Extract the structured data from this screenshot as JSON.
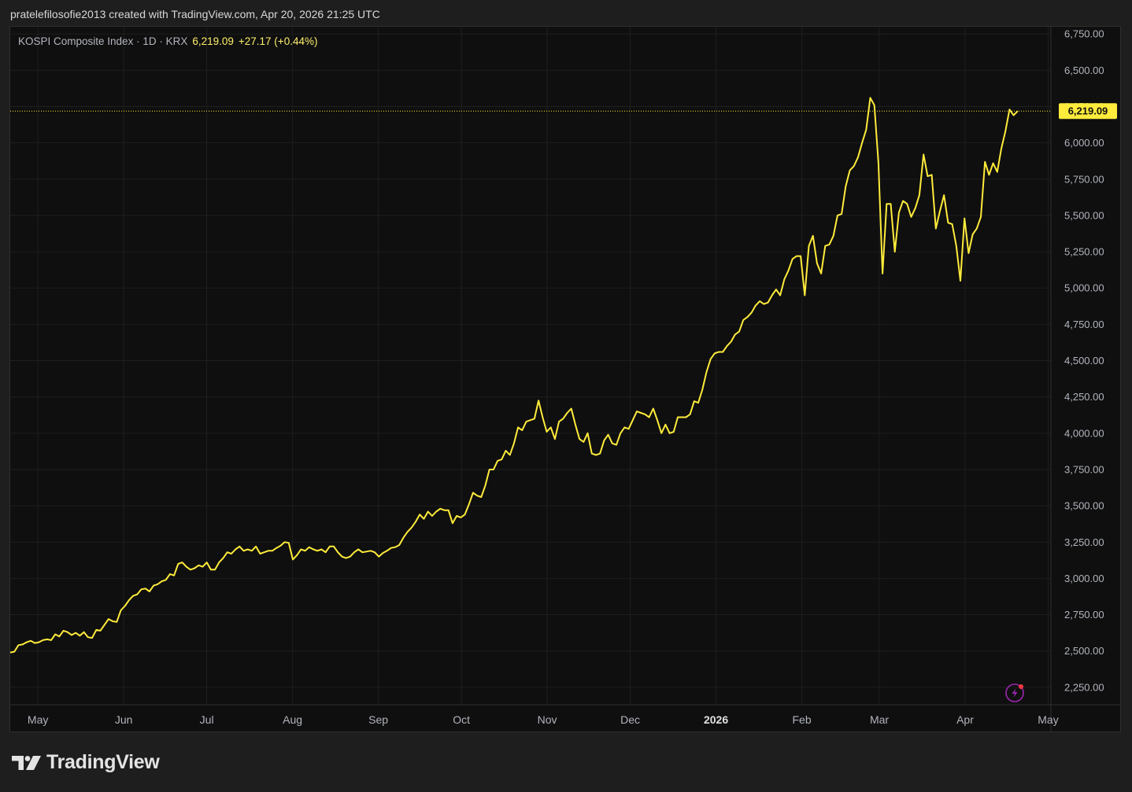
{
  "header": {
    "attribution": "pratelefilosofie2013 created with TradingView.com, Apr 20, 2026 21:25 UTC"
  },
  "legend": {
    "symbol": "KOSPI Composite Index · 1D · KRX",
    "price": "6,219.09",
    "change": "+27.17 (+0.44%)"
  },
  "footer": {
    "brand": "TradingView"
  },
  "colors": {
    "line": "#ffeb3b",
    "last_price_label_bg": "#ffeb3b",
    "background": "#0f0f0f",
    "grid": "#1f1f1f"
  },
  "chart_data": {
    "type": "line",
    "series": [
      {
        "values": [
          2490,
          2495,
          2540,
          2545,
          2560,
          2570,
          2555,
          2560,
          2575,
          2580,
          2575,
          2615,
          2600,
          2640,
          2630,
          2610,
          2625,
          2605,
          2630,
          2595,
          2590,
          2645,
          2640,
          2680,
          2720,
          2705,
          2700,
          2780,
          2810,
          2850,
          2880,
          2890,
          2925,
          2930,
          2910,
          2950,
          2960,
          2980,
          2990,
          3030,
          3020,
          3100,
          3110,
          3080,
          3060,
          3070,
          3090,
          3080,
          3110,
          3060,
          3060,
          3110,
          3140,
          3180,
          3170,
          3200,
          3220,
          3190,
          3200,
          3190,
          3220,
          3170,
          3180,
          3190,
          3190,
          3210,
          3225,
          3250,
          3245,
          3130,
          3160,
          3200,
          3190,
          3215,
          3200,
          3190,
          3200,
          3180,
          3220,
          3220,
          3180,
          3150,
          3140,
          3150,
          3180,
          3200,
          3180,
          3185,
          3190,
          3180,
          3150,
          3175,
          3190,
          3210,
          3215,
          3230,
          3280,
          3320,
          3350,
          3390,
          3440,
          3410,
          3460,
          3430,
          3460,
          3480,
          3470,
          3470,
          3380,
          3430,
          3420,
          3440,
          3510,
          3590,
          3570,
          3560,
          3640,
          3750,
          3750,
          3810,
          3820,
          3880,
          3850,
          3930,
          4040,
          4020,
          4080,
          4090,
          4100,
          4225,
          4110,
          4010,
          4040,
          3960,
          4080,
          4100,
          4140,
          4170,
          4060,
          3960,
          3940,
          4000,
          3860,
          3850,
          3860,
          3950,
          3990,
          3930,
          3920,
          4000,
          4040,
          4030,
          4090,
          4150,
          4140,
          4130,
          4110,
          4170,
          4090,
          4000,
          4060,
          4000,
          4010,
          4110,
          4110,
          4110,
          4130,
          4220,
          4210,
          4300,
          4420,
          4510,
          4550,
          4560,
          4560,
          4600,
          4630,
          4680,
          4700,
          4780,
          4800,
          4830,
          4880,
          4910,
          4890,
          4900,
          4950,
          4990,
          4950,
          5060,
          5120,
          5200,
          5220,
          5220,
          4950,
          5290,
          5360,
          5170,
          5100,
          5290,
          5300,
          5360,
          5500,
          5510,
          5700,
          5810,
          5840,
          5900,
          6000,
          6090,
          6310,
          6260,
          5860,
          5100,
          5580,
          5580,
          5250,
          5520,
          5600,
          5580,
          5490,
          5550,
          5640,
          5920,
          5770,
          5780,
          5410,
          5530,
          5640,
          5450,
          5440,
          5290,
          5050,
          5480,
          5240,
          5370,
          5410,
          5490,
          5870,
          5780,
          5860,
          5800,
          5960,
          6080,
          6230,
          6190,
          6219.09
        ],
        "first_date": "2025-04-21",
        "last_date": "2026-04-20"
      }
    ],
    "ylim": [
      2130,
      6800
    ],
    "y_ticks": [
      "2,250.00",
      "2,500.00",
      "2,750.00",
      "3,000.00",
      "3,250.00",
      "3,500.00",
      "3,750.00",
      "4,000.00",
      "4,250.00",
      "4,500.00",
      "4,750.00",
      "5,000.00",
      "5,250.00",
      "5,500.00",
      "5,750.00",
      "6,000.00",
      "6,250.00",
      "6,500.00",
      "6,750.00"
    ],
    "y_tick_values": [
      2250,
      2500,
      2750,
      3000,
      3250,
      3500,
      3750,
      4000,
      4250,
      4500,
      4750,
      5000,
      5250,
      5500,
      5750,
      6000,
      6250,
      6500,
      6750
    ],
    "x_ticks": [
      {
        "label": "May",
        "date": "2025-05-01"
      },
      {
        "label": "Jun",
        "date": "2025-06-01"
      },
      {
        "label": "Jul",
        "date": "2025-07-01"
      },
      {
        "label": "Aug",
        "date": "2025-08-01"
      },
      {
        "label": "Sep",
        "date": "2025-09-01"
      },
      {
        "label": "Oct",
        "date": "2025-10-01"
      },
      {
        "label": "Nov",
        "date": "2025-11-01"
      },
      {
        "label": "Dec",
        "date": "2025-12-01"
      },
      {
        "label": "2026",
        "date": "2026-01-01",
        "bold": true
      },
      {
        "label": "Feb",
        "date": "2026-02-01"
      },
      {
        "label": "Mar",
        "date": "2026-03-01"
      },
      {
        "label": "Apr",
        "date": "2026-04-01"
      },
      {
        "label": "May",
        "date": "2026-05-01"
      }
    ],
    "xlim": [
      "2025-04-21",
      "2026-05-02"
    ],
    "last_price": 6219.09,
    "last_price_label": "6,219.09",
    "grid": true,
    "y_axis_side": "right"
  }
}
